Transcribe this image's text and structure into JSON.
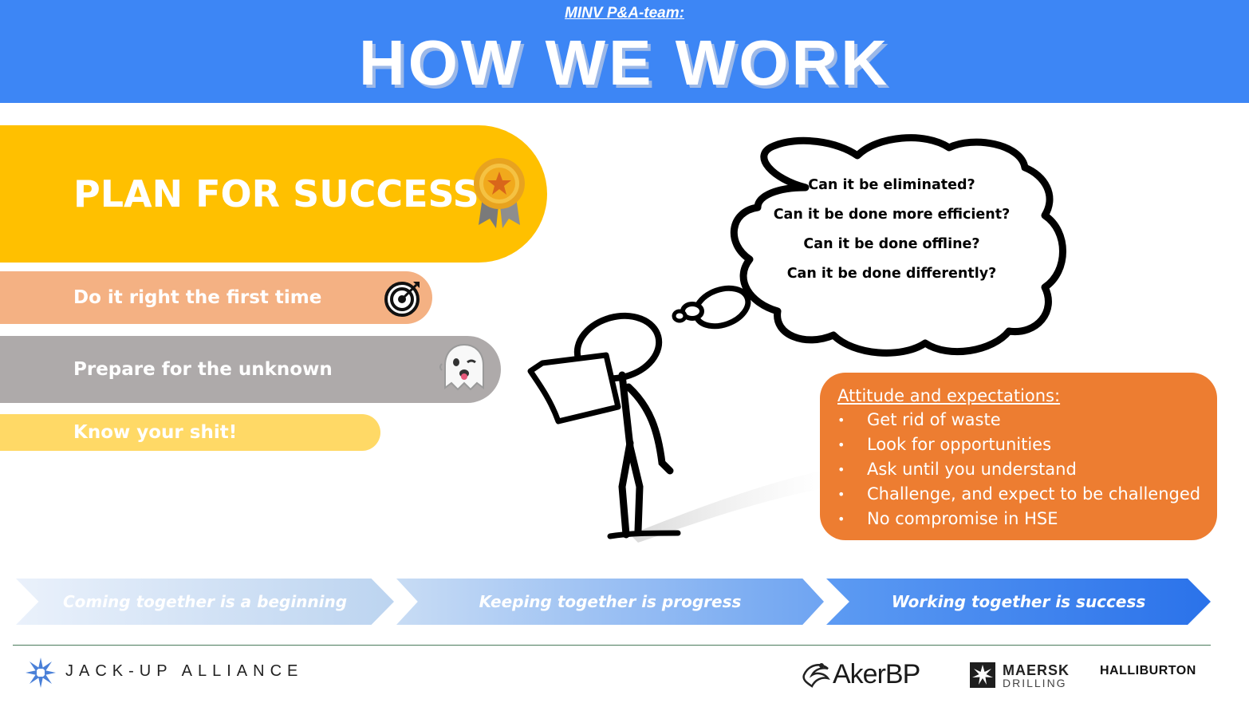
{
  "header": {
    "subtitle": "MINV P&A-team:",
    "title": "HOW WE WORK",
    "background_color": "#3d86f5"
  },
  "plan": {
    "main_label": "PLAN FOR SUCCESS!",
    "main_icon": "award-medal-icon",
    "items": [
      {
        "label": "Do it right the first time",
        "icon": "target-icon",
        "color": "#f4b183"
      },
      {
        "label": "Prepare for the unknown",
        "icon": "ghost-icon",
        "color": "#aeaaaa"
      },
      {
        "label": "Know your shit!",
        "color": "#ffd966"
      }
    ],
    "main_color": "#ffc000"
  },
  "thought_cloud": {
    "questions": [
      "Can it be eliminated?",
      "Can it be done more efficient?",
      "Can it be done offline?",
      "Can it be done differently?"
    ]
  },
  "attitude": {
    "title": "Attitude and expectations:",
    "items": [
      "Get rid of waste",
      "Look for opportunities",
      "Ask until you understand",
      "Challenge, and expect to be challenged",
      "No compromise in HSE"
    ],
    "color": "#ed7d31"
  },
  "arrows": [
    "Coming together is a beginning",
    "Keeping together is progress",
    "Working together is success"
  ],
  "footer": {
    "jack_up_alliance": "JACK-UP ALLIANCE",
    "akerbp": "AkerBP",
    "maersk_line1": "MAERSK",
    "maersk_line2": "DRILLING",
    "halliburton": "HALLIBURTON"
  }
}
